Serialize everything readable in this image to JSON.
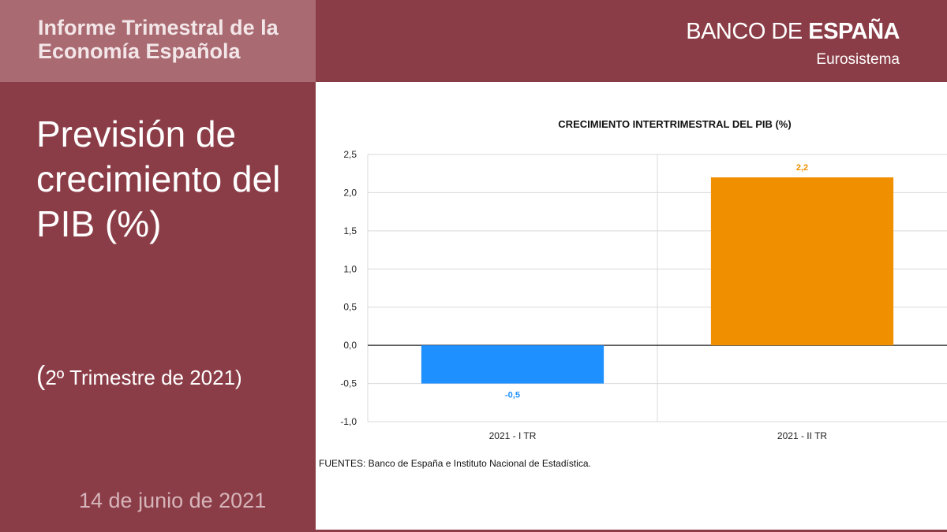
{
  "header": {
    "report_title": "Informe Trimestral de la Economía Española",
    "brand_light": "BANCO DE ",
    "brand_bold": "ESPAÑA",
    "brand_sub": "Eurosistema"
  },
  "slide": {
    "title": "Previsión de crecimiento del PIB (%)",
    "subtitle_paren_open": "(",
    "subtitle": "2º Trimestre de 2021)",
    "date": "14 de junio de 2021"
  },
  "chart_data": {
    "type": "bar",
    "title": "CRECIMIENTO INTERTRIMESTRAL DEL PIB (%)",
    "categories": [
      "2021 - I TR",
      "2021 - II TR"
    ],
    "values": [
      -0.5,
      2.2
    ],
    "data_labels": [
      "-0,5",
      "2,2"
    ],
    "colors": [
      "#1e90ff",
      "#f09000"
    ],
    "ylim": [
      -1.0,
      2.5
    ],
    "yticks": [
      "2,5",
      "2,0",
      "1,5",
      "1,0",
      "0,5",
      "0,0",
      "-0,5",
      "-1,0"
    ],
    "ytick_values": [
      2.5,
      2.0,
      1.5,
      1.0,
      0.5,
      0.0,
      -0.5,
      -1.0
    ],
    "grid": true,
    "xlabel": "",
    "ylabel": ""
  },
  "source": "FUENTES: Banco de España e Instituto Nacional de Estadística."
}
